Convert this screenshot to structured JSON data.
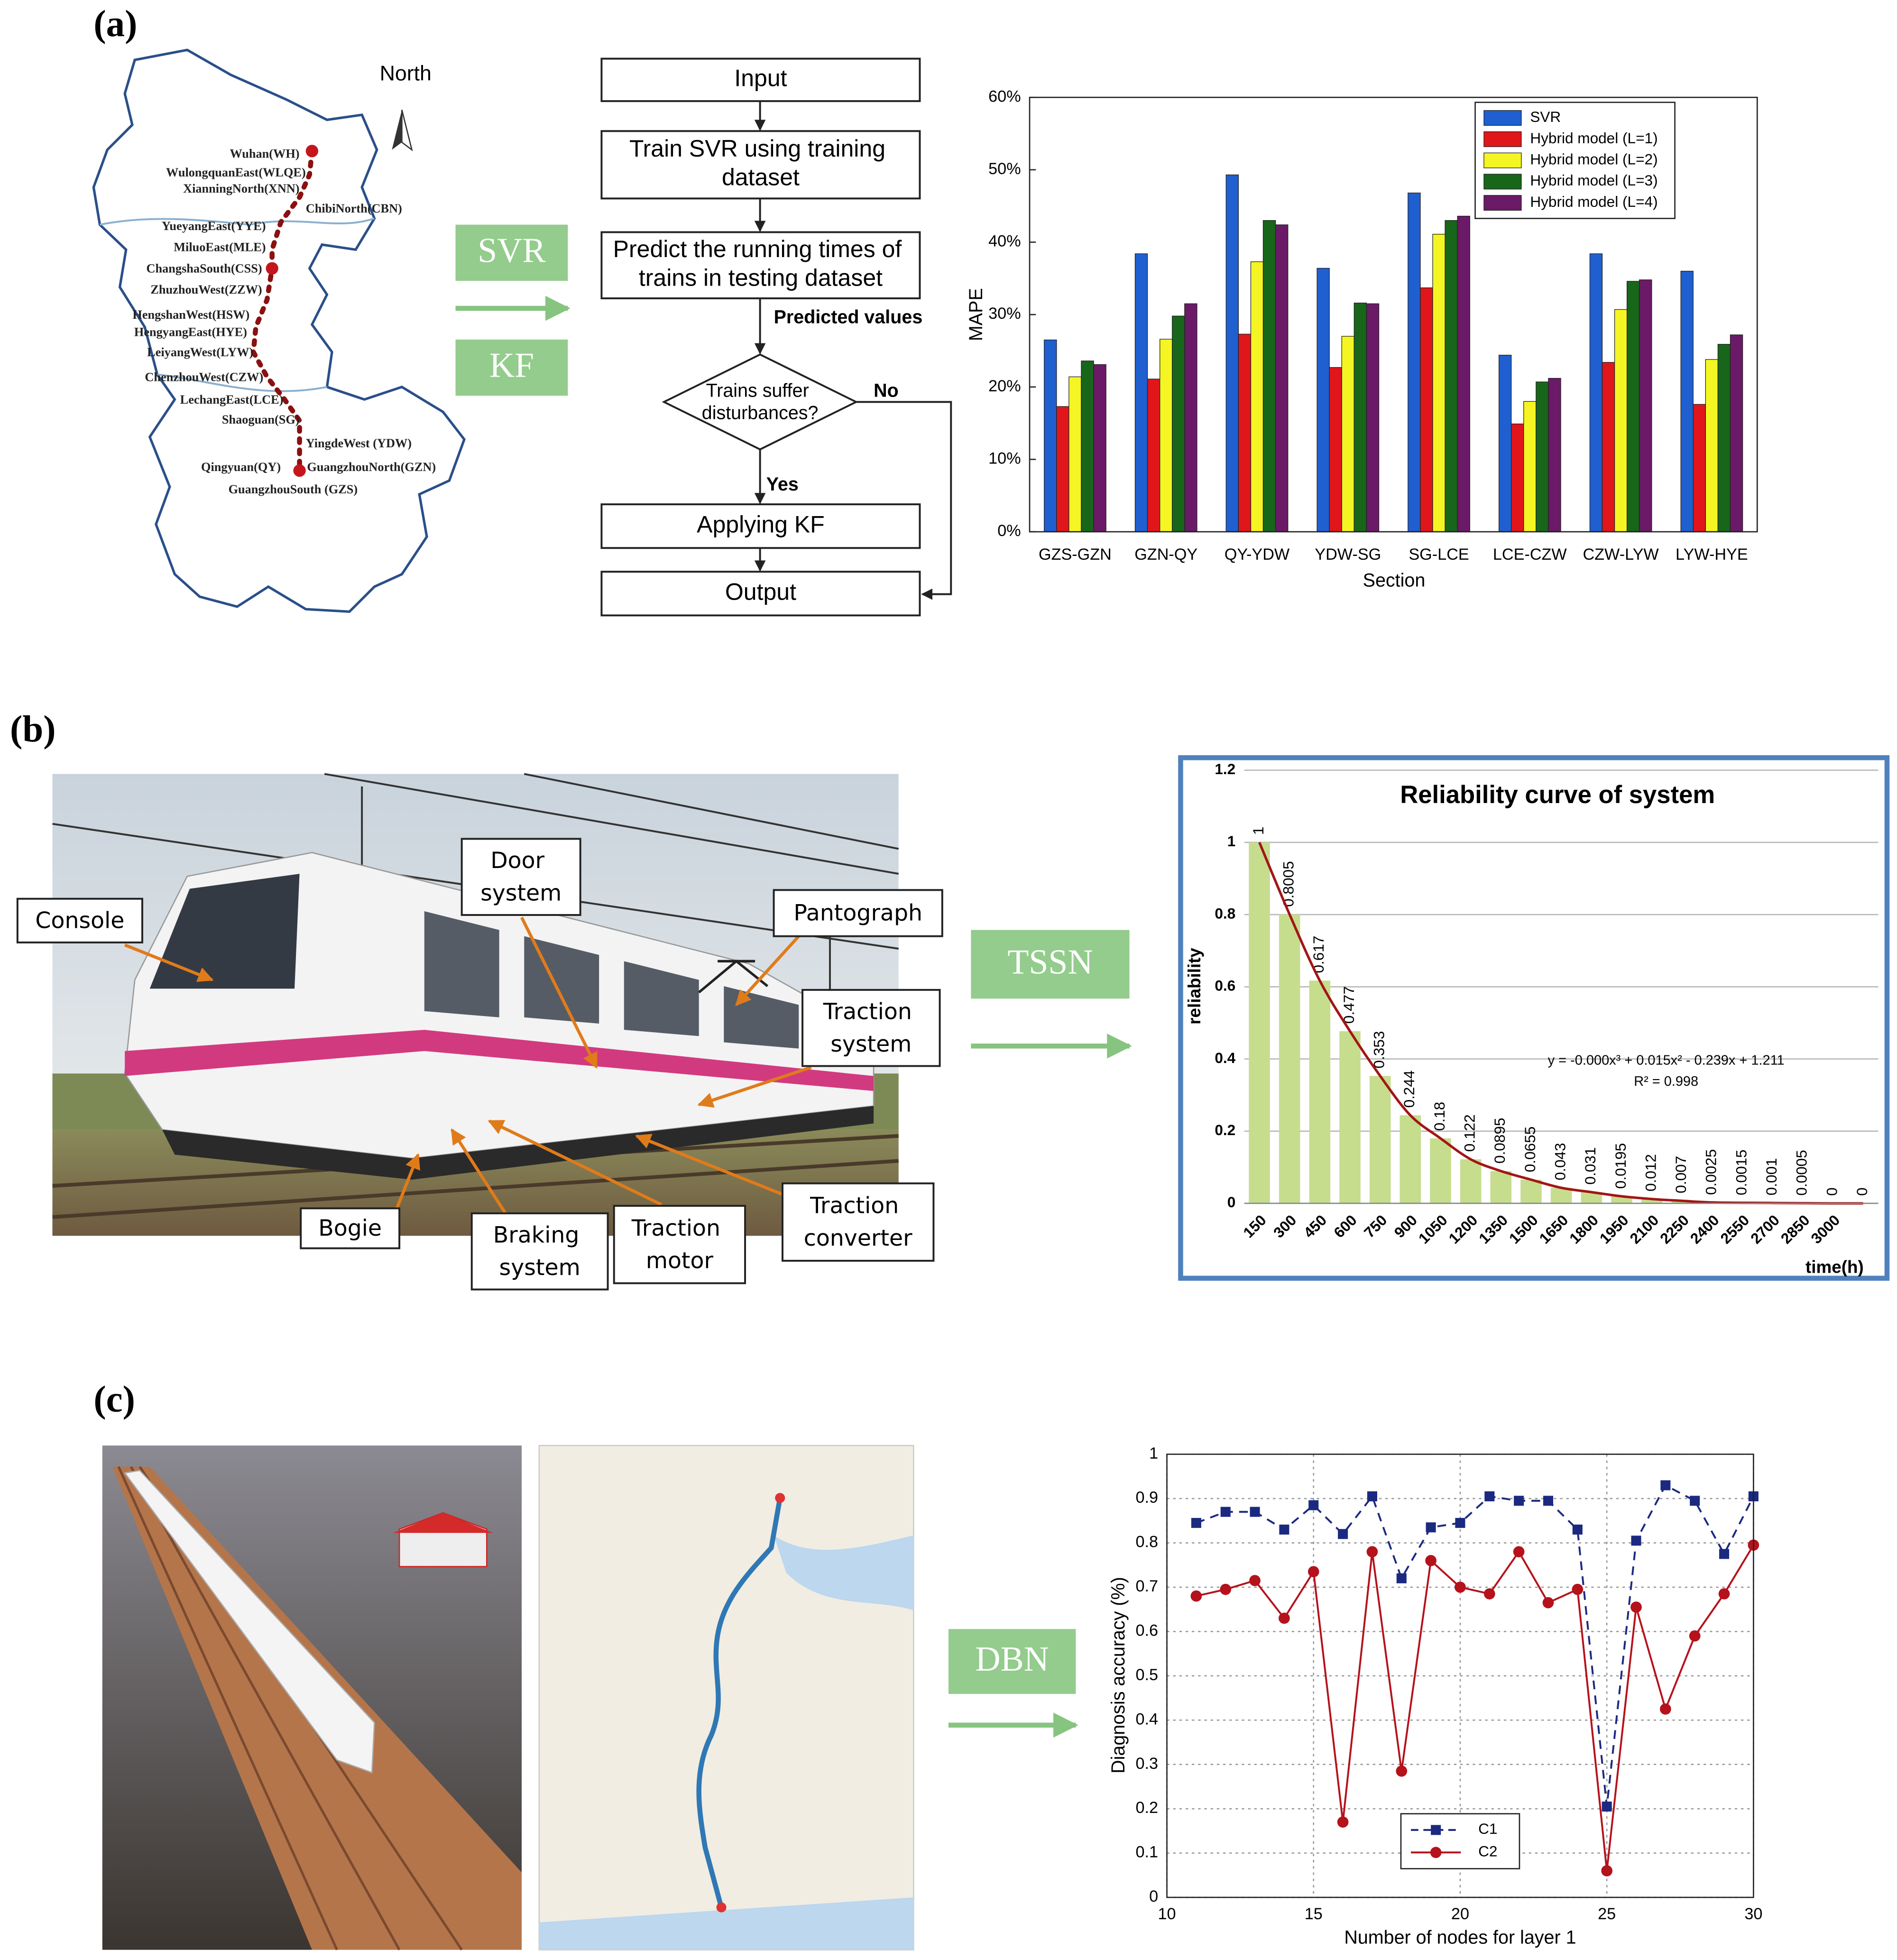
{
  "panel_labels": [
    "(a)",
    "(b)",
    "(c)"
  ],
  "methods": [
    "SVR",
    "KF",
    "TSSN",
    "DBN"
  ],
  "map": {
    "compass": "North",
    "stations": [
      "Wuhan(WH)",
      "WulongquanEast(WLQE)",
      "XianningNorth(XNN)",
      "ChibiNorth(CBN)",
      "YueyangEast(YYE)",
      "MiluoEast(MLE)",
      "ChangshaSouth(CSS)",
      "ZhuzhouWest(ZZW)",
      "HengshanWest(HSW)",
      "HengyangEast(HYE)",
      "LeiyangWest(LYW)",
      "ChenzhouWest(CZW)",
      "LechangEast(LCE)",
      "Shaoguan(SG)",
      "YingdeWest (YDW)",
      "Qingyuan(QY)",
      "GuangzhouNorth(GZN)",
      "GuangzhouSouth (GZS)"
    ]
  },
  "flowchart": {
    "nodes": [
      "Input",
      "Train SVR using training dataset",
      "Predict the running times of trains in testing dataset",
      "Trains suffer disturbances?",
      "Applying KF",
      "Output"
    ],
    "edge_labels": [
      "Predicted values",
      "No",
      "Yes"
    ]
  },
  "photo_labels": [
    "Console",
    "Door system",
    "Pantograph",
    "Traction system",
    "Bogie",
    "Braking system",
    "Traction motor",
    "Traction converter"
  ],
  "chart_data": [
    {
      "type": "bar",
      "categories": [
        "GZS-GZN",
        "GZN-QY",
        "QY-YDW",
        "YDW-SG",
        "SG-LCE",
        "LCE-CZW",
        "CZW-LYW",
        "LYW-HYE"
      ],
      "series": [
        {
          "name": "SVR",
          "color": "#1f5fd0",
          "values": [
            26.5,
            38.4,
            49.3,
            36.4,
            46.8,
            24.4,
            38.4,
            36.0
          ]
        },
        {
          "name": "Hybrid model (L=1)",
          "color": "#e0161b",
          "values": [
            17.3,
            21.1,
            27.3,
            22.7,
            33.7,
            14.9,
            23.4,
            17.6
          ]
        },
        {
          "name": "Hybrid model (L=2)",
          "color": "#f5f523",
          "values": [
            21.4,
            26.6,
            37.3,
            27.0,
            41.1,
            18.0,
            30.7,
            23.8
          ]
        },
        {
          "name": "Hybrid model (L=3)",
          "color": "#17661a",
          "values": [
            23.6,
            29.8,
            43.0,
            31.6,
            43.0,
            20.7,
            34.6,
            25.9
          ]
        },
        {
          "name": "Hybrid model (L=4)",
          "color": "#6a1a66",
          "values": [
            23.1,
            31.5,
            42.4,
            31.5,
            43.6,
            21.2,
            34.8,
            27.2
          ]
        }
      ],
      "xlabel": "Section",
      "ylabel": "MAPE",
      "ylim": [
        0,
        60
      ],
      "yticks": [
        {
          "value": 0,
          "label": "0%"
        },
        {
          "value": 10,
          "label": "10%"
        },
        {
          "value": 20,
          "label": "20%"
        },
        {
          "value": 30,
          "label": "30%"
        },
        {
          "value": 40,
          "label": "40%"
        },
        {
          "value": 50,
          "label": "50%"
        },
        {
          "value": 60,
          "label": "60%"
        }
      ],
      "grid": false,
      "legend": "upper right"
    },
    {
      "type": "bar",
      "title": "Reliability curve of system",
      "categories": [
        "150",
        "300",
        "450",
        "600",
        "750",
        "900",
        "1050",
        "1200",
        "1350",
        "1500",
        "1650",
        "1800",
        "1950",
        "2100",
        "2250",
        "2400",
        "2550",
        "2700",
        "2850",
        "3000",
        null
      ],
      "values": [
        1,
        0.8005,
        0.617,
        0.477,
        0.353,
        0.244,
        0.18,
        0.122,
        0.0895,
        0.0655,
        0.043,
        0.031,
        0.0195,
        0.012,
        0.007,
        0.0025,
        0.0015,
        0.001,
        0.0005,
        0,
        0
      ],
      "color": "#c6dd8e",
      "trendline_color": "#a31515",
      "annotations": [
        "y = -0.000x³ + 0.015x² - 0.239x + 1.211",
        "R² = 0.998"
      ],
      "xlabel": "time(h)",
      "ylabel": "reliability",
      "ylim": [
        0,
        1.2
      ],
      "yticks": [
        0,
        0.2,
        0.4,
        0.6,
        0.8,
        1,
        1.2
      ],
      "grid": true
    },
    {
      "type": "line",
      "x": [
        11,
        12,
        13,
        14,
        15,
        16,
        17,
        18,
        19,
        20,
        21,
        22,
        23,
        24,
        25,
        26,
        27,
        28,
        29,
        30
      ],
      "series": [
        {
          "name": "C1",
          "color": "#1b2a80",
          "linestyle": "dashed",
          "marker": "square",
          "values": [
            0.845,
            0.87,
            0.87,
            0.83,
            0.885,
            0.82,
            0.905,
            0.72,
            0.835,
            0.845,
            0.905,
            0.895,
            0.895,
            0.83,
            0.205,
            0.805,
            0.93,
            0.895,
            0.775,
            0.905
          ]
        },
        {
          "name": "C2",
          "color": "#b5121b",
          "linestyle": "solid",
          "marker": "circle",
          "values": [
            0.68,
            0.695,
            0.715,
            0.63,
            0.735,
            0.17,
            0.78,
            0.285,
            0.76,
            0.7,
            0.685,
            0.78,
            0.665,
            0.695,
            0.06,
            0.655,
            0.425,
            0.59,
            0.685,
            0.795
          ]
        }
      ],
      "xlabel": "Number of nodes for layer 1",
      "ylabel": "Diagnosis accuracy (%)",
      "xlim": [
        10,
        30
      ],
      "xticks": [
        10,
        15,
        20,
        25,
        30
      ],
      "ylim": [
        0,
        1
      ],
      "yticks": [
        0,
        0.1,
        0.2,
        0.3,
        0.4,
        0.5,
        0.6,
        0.7,
        0.8,
        0.9,
        1
      ],
      "grid": true,
      "legend": "lower center"
    }
  ]
}
